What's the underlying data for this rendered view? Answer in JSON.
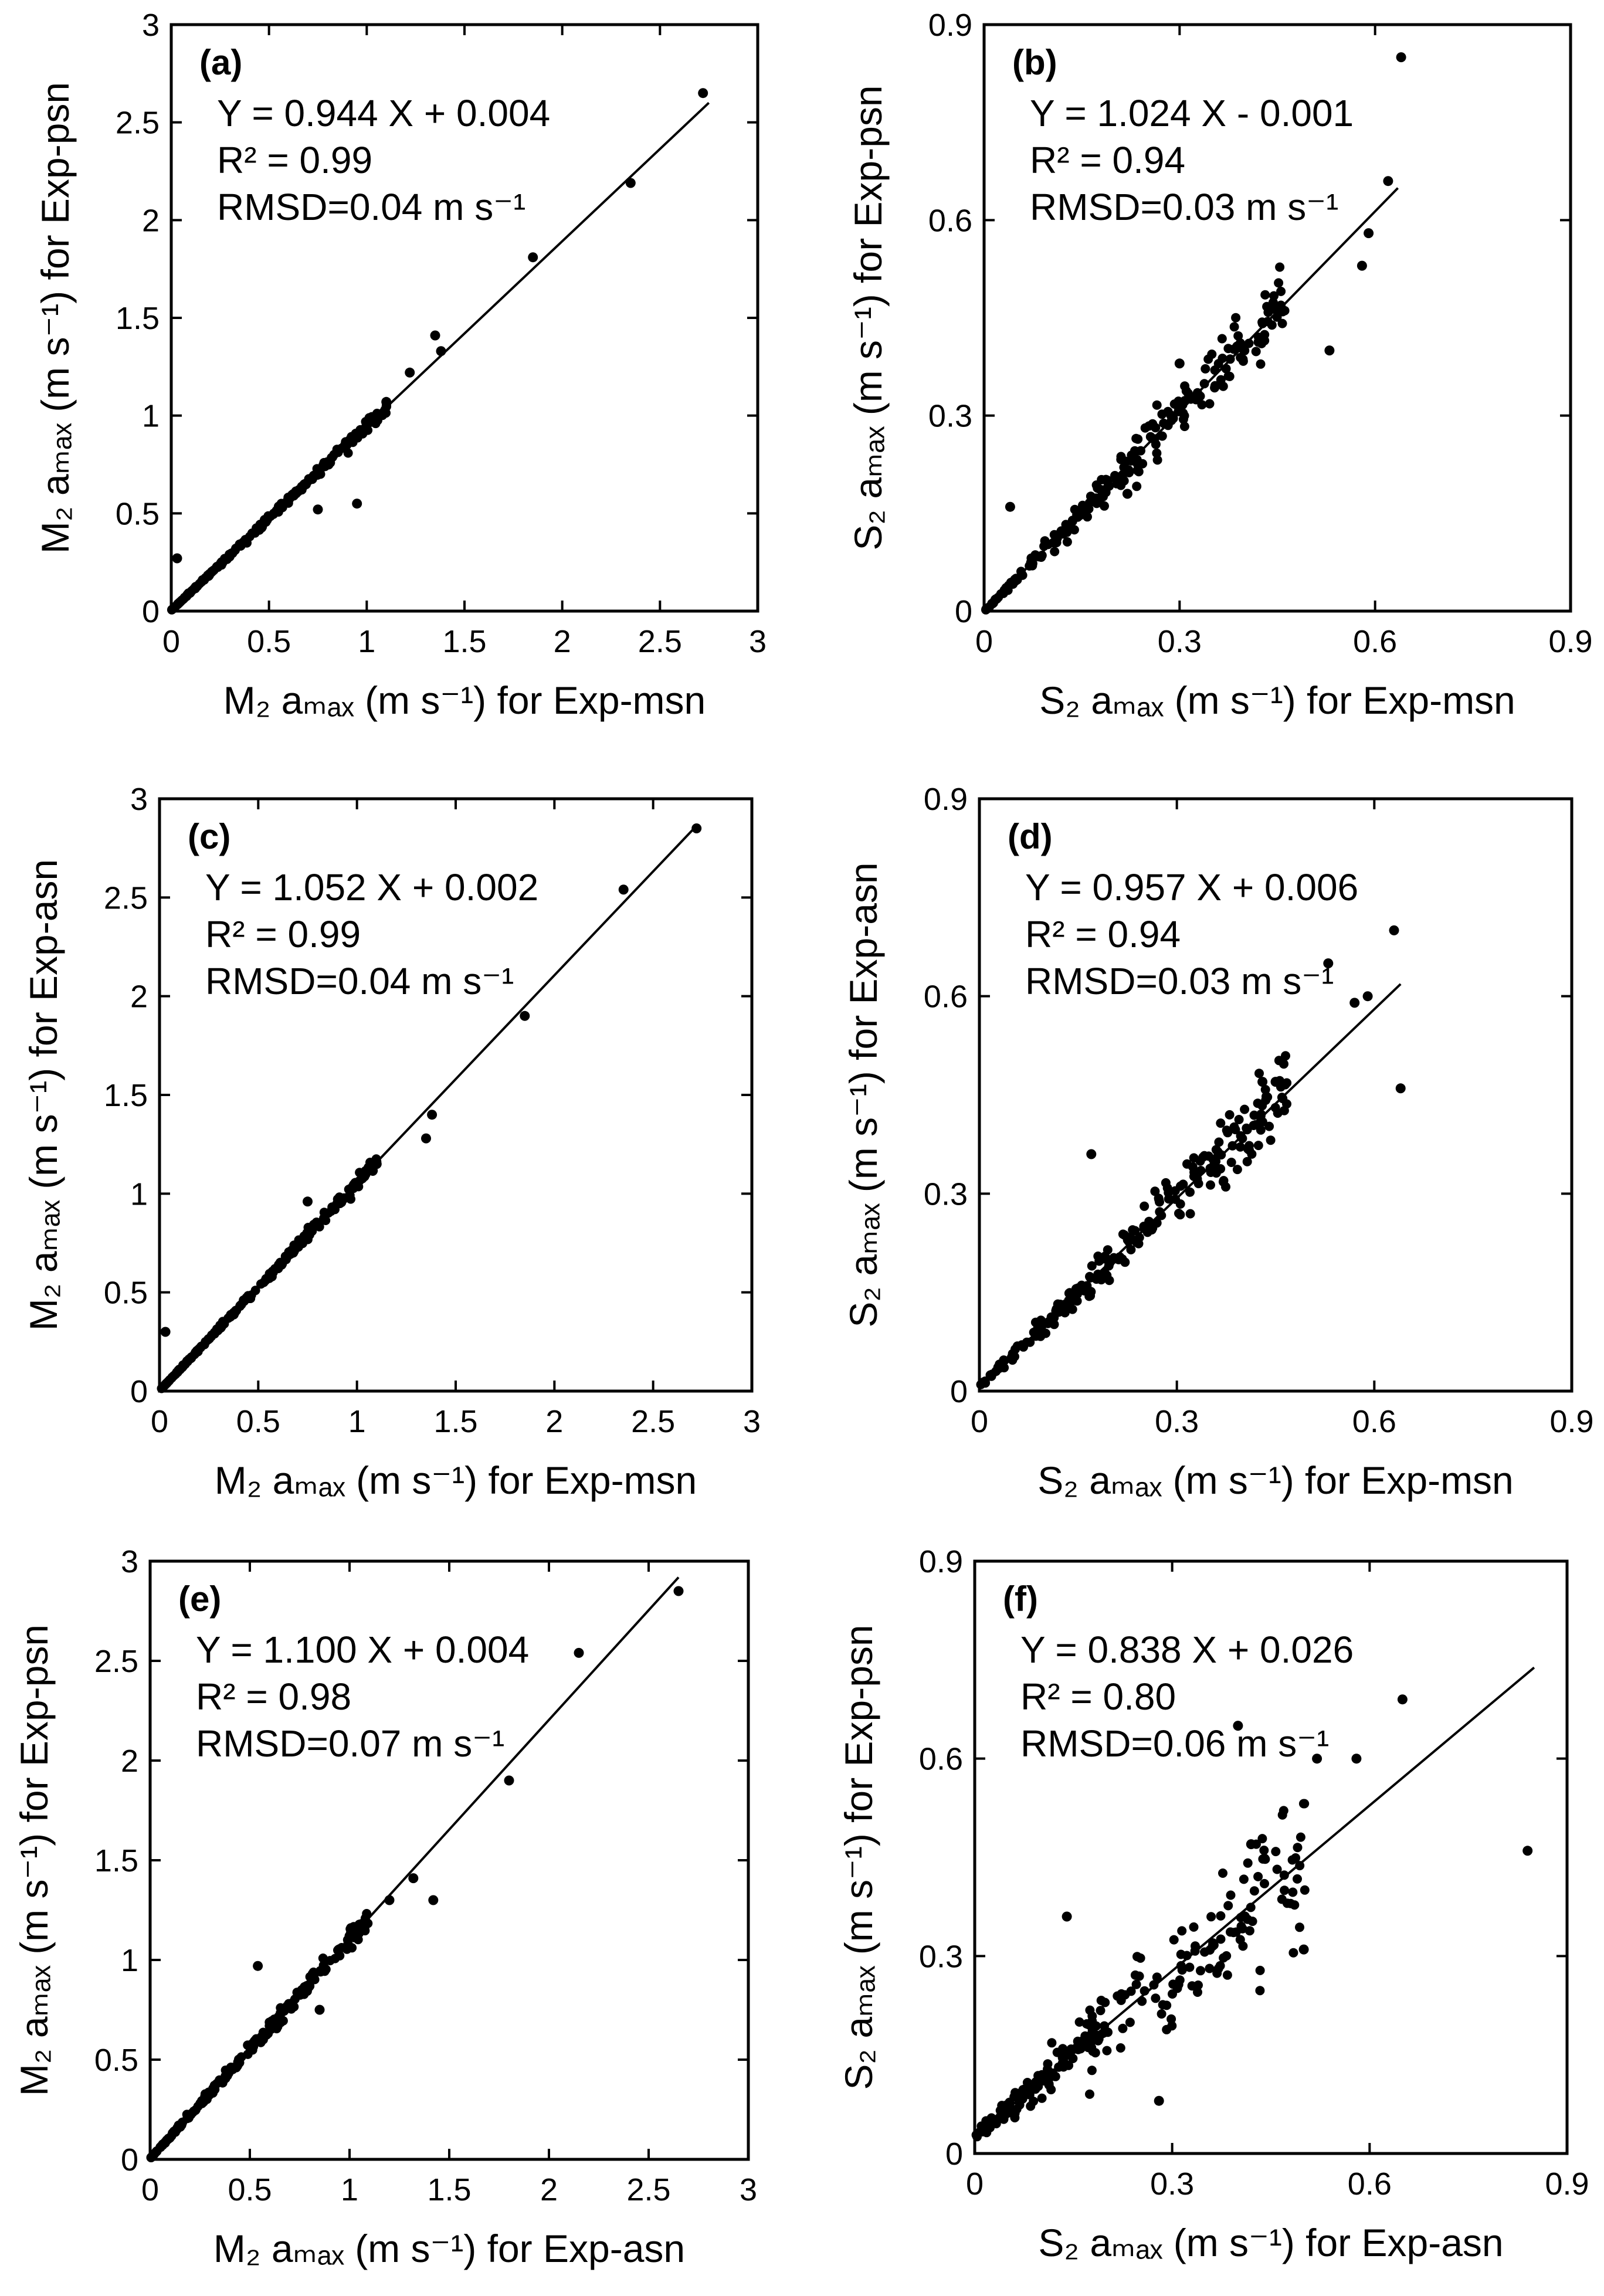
{
  "figure": {
    "panels": [
      {
        "label": "(a)",
        "equation": "Y = 0.944 X + 0.004",
        "r2": "R² = 0.99",
        "rmsd": "RMSD=0.04 m s⁻¹",
        "xlabel": "M₂ aₘₐₓ (m s⁻¹) for Exp-msn",
        "ylabel": "M₂ aₘₐₓ (m s⁻¹) for Exp-psn"
      },
      {
        "label": "(b)",
        "equation": "Y = 1.024 X - 0.001",
        "r2": "R² = 0.94",
        "rmsd": "RMSD=0.03 m s⁻¹",
        "xlabel": "S₂ aₘₐₓ (m s⁻¹) for Exp-msn",
        "ylabel": "S₂ aₘₐₓ (m s⁻¹) for Exp-psn"
      },
      {
        "label": "(c)",
        "equation": "Y = 1.052 X + 0.002",
        "r2": "R² = 0.99",
        "rmsd": "RMSD=0.04 m s⁻¹",
        "xlabel": "M₂ aₘₐₓ (m s⁻¹) for Exp-msn",
        "ylabel": "M₂ aₘₐₓ (m s⁻¹) for Exp-asn"
      },
      {
        "label": "(d)",
        "equation": "Y = 0.957 X + 0.006",
        "r2": "R² = 0.94",
        "rmsd": "RMSD=0.03 m s⁻¹",
        "xlabel": "S₂ aₘₐₓ (m s⁻¹) for Exp-msn",
        "ylabel": "S₂ aₘₐₓ (m s⁻¹) for Exp-asn"
      },
      {
        "label": "(e)",
        "equation": "Y = 1.100 X + 0.004",
        "r2": "R² = 0.98",
        "rmsd": "RMSD=0.07 m s⁻¹",
        "xlabel": "M₂ aₘₐₓ (m s⁻¹) for Exp-asn",
        "ylabel": "M₂ aₘₐₓ (m s⁻¹) for Exp-psn"
      },
      {
        "label": "(f)",
        "equation": "Y = 0.838 X + 0.026",
        "r2": "R² = 0.80",
        "rmsd": "RMSD=0.06 m s⁻¹",
        "xlabel": "S₂ aₘₐₓ (m s⁻¹) for Exp-asn",
        "ylabel": "S₂ aₘₐₓ (m s⁻¹) for Exp-psn"
      }
    ]
  },
  "chart_data": [
    {
      "type": "scatter",
      "panel": "(a)",
      "xlim": [
        0,
        3
      ],
      "ylim": [
        0,
        3
      ],
      "xticks": [
        "0",
        "0.5",
        "1",
        "1.5",
        "2",
        "2.5",
        "3"
      ],
      "yticks": [
        "0",
        "0.5",
        "1",
        "1.5",
        "2",
        "2.5",
        "3"
      ],
      "fit": {
        "slope": 0.944,
        "intercept": 0.004,
        "x_range": [
          0,
          2.75
        ]
      },
      "scatter_rel": 0.03,
      "highlight_points": [
        [
          2.72,
          2.65
        ],
        [
          2.35,
          2.19
        ],
        [
          1.85,
          1.81
        ],
        [
          1.35,
          1.41
        ],
        [
          1.38,
          1.33
        ],
        [
          1.22,
          1.22
        ],
        [
          0.03,
          0.27
        ],
        [
          0.95,
          0.55
        ],
        [
          1.1,
          1.07
        ],
        [
          0.75,
          0.52
        ]
      ],
      "n_points": 230,
      "x_max_cluster": 1.1
    },
    {
      "type": "scatter",
      "panel": "(b)",
      "xlim": [
        0,
        0.9
      ],
      "ylim": [
        0,
        0.9
      ],
      "xticks": [
        "0",
        "0.3",
        "0.6",
        "0.9"
      ],
      "yticks": [
        "0",
        "0.3",
        "0.6",
        "0.9"
      ],
      "fit": {
        "slope": 1.024,
        "intercept": -0.001,
        "x_range": [
          0,
          0.635
        ]
      },
      "scatter_rel": 0.12,
      "highlight_points": [
        [
          0.64,
          0.85
        ],
        [
          0.62,
          0.66
        ],
        [
          0.59,
          0.58
        ],
        [
          0.58,
          0.53
        ],
        [
          0.53,
          0.4
        ],
        [
          0.04,
          0.16
        ],
        [
          0.22,
          0.18
        ],
        [
          0.3,
          0.38
        ]
      ],
      "n_points": 230,
      "x_max_cluster": 0.46
    },
    {
      "type": "scatter",
      "panel": "(c)",
      "xlim": [
        0,
        3
      ],
      "ylim": [
        0,
        3
      ],
      "xticks": [
        "0",
        "0.5",
        "1",
        "1.5",
        "2",
        "2.5",
        "3"
      ],
      "yticks": [
        "0",
        "0.5",
        "1",
        "1.5",
        "2",
        "2.5",
        "3"
      ],
      "fit": {
        "slope": 1.052,
        "intercept": 0.002,
        "x_range": [
          0,
          2.72
        ]
      },
      "scatter_rel": 0.03,
      "highlight_points": [
        [
          2.72,
          2.85
        ],
        [
          2.35,
          2.54
        ],
        [
          1.85,
          1.9
        ],
        [
          1.38,
          1.4
        ],
        [
          1.35,
          1.28
        ],
        [
          1.1,
          1.15
        ],
        [
          0.03,
          0.3
        ],
        [
          0.75,
          0.96
        ]
      ],
      "n_points": 230,
      "x_max_cluster": 1.1
    },
    {
      "type": "scatter",
      "panel": "(d)",
      "xlim": [
        0,
        0.9
      ],
      "ylim": [
        0,
        0.9
      ],
      "xticks": [
        "0",
        "0.3",
        "0.6",
        "0.9"
      ],
      "yticks": [
        "0",
        "0.3",
        "0.6",
        "0.9"
      ],
      "fit": {
        "slope": 0.957,
        "intercept": 0.006,
        "x_range": [
          0,
          0.64
        ]
      },
      "scatter_rel": 0.13,
      "highlight_points": [
        [
          0.63,
          0.7
        ],
        [
          0.53,
          0.65
        ],
        [
          0.59,
          0.6
        ],
        [
          0.57,
          0.59
        ],
        [
          0.64,
          0.46
        ],
        [
          0.17,
          0.36
        ],
        [
          0.45,
          0.47
        ],
        [
          0.43,
          0.47
        ]
      ],
      "n_points": 230,
      "x_max_cluster": 0.47
    },
    {
      "type": "scatter",
      "panel": "(e)",
      "xlim": [
        0,
        3
      ],
      "ylim": [
        0,
        3
      ],
      "xticks": [
        "0",
        "0.5",
        "1",
        "1.5",
        "2",
        "2.5",
        "3"
      ],
      "yticks": [
        "0",
        "0.5",
        "1",
        "1.5",
        "2",
        "2.5",
        "3"
      ],
      "fit": {
        "slope": 1.1,
        "intercept": 0.004,
        "x_range": [
          0,
          2.65
        ]
      },
      "scatter_rel": 0.05,
      "highlight_points": [
        [
          2.65,
          2.85
        ],
        [
          2.15,
          2.54
        ],
        [
          1.8,
          1.9
        ],
        [
          1.32,
          1.41
        ],
        [
          1.42,
          1.3
        ],
        [
          1.2,
          1.3
        ],
        [
          0.54,
          0.97
        ],
        [
          0.85,
          0.75
        ],
        [
          1.0,
          1.12
        ]
      ],
      "n_points": 230,
      "x_max_cluster": 1.1
    },
    {
      "type": "scatter",
      "panel": "(f)",
      "xlim": [
        0,
        0.9
      ],
      "ylim": [
        0,
        0.9
      ],
      "xticks": [
        "0",
        "0.3",
        "0.6",
        "0.9"
      ],
      "yticks": [
        "0",
        "0.3",
        "0.6",
        "0.9"
      ],
      "fit": {
        "slope": 0.838,
        "intercept": 0.026,
        "x_range": [
          0,
          0.85
        ]
      },
      "scatter_rel": 0.24,
      "highlight_points": [
        [
          0.84,
          0.46
        ],
        [
          0.65,
          0.69
        ],
        [
          0.58,
          0.6
        ],
        [
          0.52,
          0.6
        ],
        [
          0.4,
          0.65
        ],
        [
          0.14,
          0.36
        ],
        [
          0.28,
          0.08
        ],
        [
          0.42,
          0.47
        ],
        [
          0.5,
          0.31
        ]
      ],
      "n_points": 230,
      "x_max_cluster": 0.5
    }
  ]
}
